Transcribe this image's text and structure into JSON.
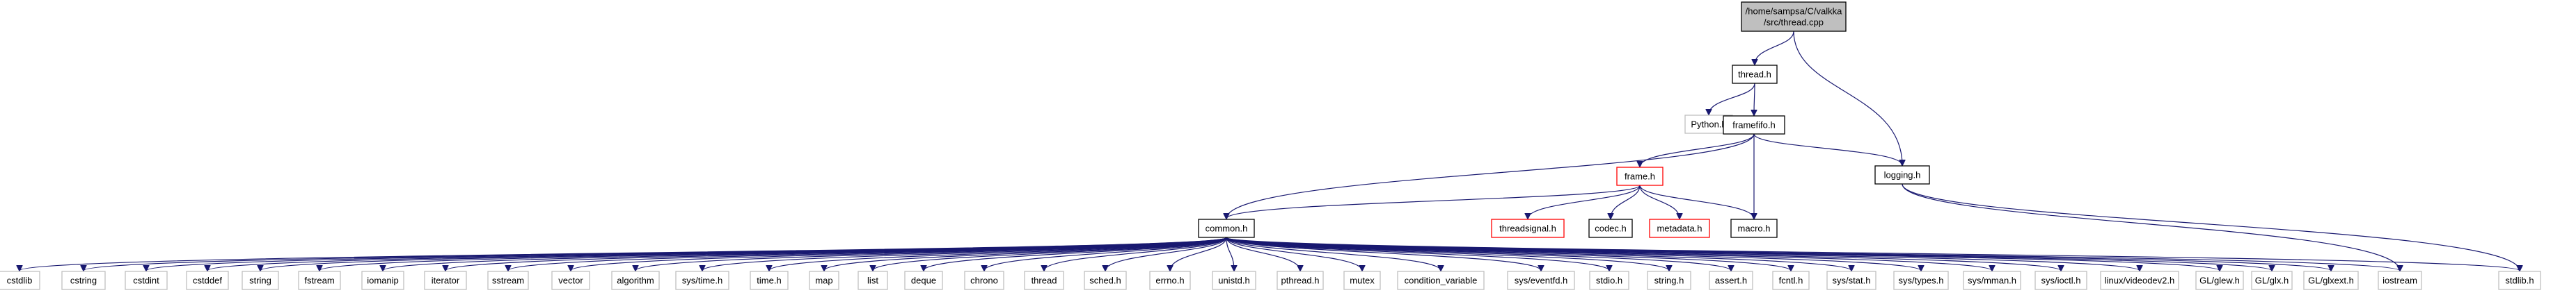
{
  "diagram": {
    "nodes": [
      {
        "id": "root",
        "lines": [
          "/home/sampsa/C/valkka",
          "/src/thread.cpp"
        ],
        "style": "root",
        "link": false
      },
      {
        "id": "thread_h",
        "lines": [
          "thread.h"
        ],
        "style": "normal",
        "link": true
      },
      {
        "id": "python_h",
        "lines": [
          "Python.h"
        ],
        "style": "missing",
        "link": false
      },
      {
        "id": "framefifo_h",
        "lines": [
          "framefifo.h"
        ],
        "style": "normal",
        "link": true
      },
      {
        "id": "logging_h",
        "lines": [
          "logging.h"
        ],
        "style": "normal",
        "link": true
      },
      {
        "id": "frame_h",
        "lines": [
          "frame.h"
        ],
        "style": "truncated",
        "link": true
      },
      {
        "id": "threadsignal_h",
        "lines": [
          "threadsignal.h"
        ],
        "style": "truncated",
        "link": true
      },
      {
        "id": "codec_h",
        "lines": [
          "codec.h"
        ],
        "style": "normal",
        "link": true
      },
      {
        "id": "metadata_h",
        "lines": [
          "metadata.h"
        ],
        "style": "truncated",
        "link": true
      },
      {
        "id": "macro_h",
        "lines": [
          "macro.h"
        ],
        "style": "normal",
        "link": true
      },
      {
        "id": "common_h",
        "lines": [
          "common.h"
        ],
        "style": "normal",
        "link": true
      },
      {
        "id": "cstdlib",
        "lines": [
          "cstdlib"
        ],
        "style": "missing",
        "link": false
      },
      {
        "id": "cstring",
        "lines": [
          "cstring"
        ],
        "style": "missing",
        "link": false
      },
      {
        "id": "cstdint",
        "lines": [
          "cstdint"
        ],
        "style": "missing",
        "link": false
      },
      {
        "id": "cstddef",
        "lines": [
          "cstddef"
        ],
        "style": "missing",
        "link": false
      },
      {
        "id": "string",
        "lines": [
          "string"
        ],
        "style": "missing",
        "link": false
      },
      {
        "id": "fstream",
        "lines": [
          "fstream"
        ],
        "style": "missing",
        "link": false
      },
      {
        "id": "iomanip",
        "lines": [
          "iomanip"
        ],
        "style": "missing",
        "link": false
      },
      {
        "id": "iterator",
        "lines": [
          "iterator"
        ],
        "style": "missing",
        "link": false
      },
      {
        "id": "sstream",
        "lines": [
          "sstream"
        ],
        "style": "missing",
        "link": false
      },
      {
        "id": "vector",
        "lines": [
          "vector"
        ],
        "style": "missing",
        "link": false
      },
      {
        "id": "algorithm",
        "lines": [
          "algorithm"
        ],
        "style": "missing",
        "link": false
      },
      {
        "id": "sys_time_h",
        "lines": [
          "sys/time.h"
        ],
        "style": "missing",
        "link": false
      },
      {
        "id": "time_h",
        "lines": [
          "time.h"
        ],
        "style": "missing",
        "link": false
      },
      {
        "id": "map",
        "lines": [
          "map"
        ],
        "style": "missing",
        "link": false
      },
      {
        "id": "list",
        "lines": [
          "list"
        ],
        "style": "missing",
        "link": false
      },
      {
        "id": "deque",
        "lines": [
          "deque"
        ],
        "style": "missing",
        "link": false
      },
      {
        "id": "chrono",
        "lines": [
          "chrono"
        ],
        "style": "missing",
        "link": false
      },
      {
        "id": "thread",
        "lines": [
          "thread"
        ],
        "style": "missing",
        "link": false
      },
      {
        "id": "sched_h",
        "lines": [
          "sched.h"
        ],
        "style": "missing",
        "link": false
      },
      {
        "id": "errno_h",
        "lines": [
          "errno.h"
        ],
        "style": "missing",
        "link": false
      },
      {
        "id": "unistd_h",
        "lines": [
          "unistd.h"
        ],
        "style": "missing",
        "link": false
      },
      {
        "id": "pthread_h",
        "lines": [
          "pthread.h"
        ],
        "style": "missing",
        "link": false
      },
      {
        "id": "mutex",
        "lines": [
          "mutex"
        ],
        "style": "missing",
        "link": false
      },
      {
        "id": "condition_variable",
        "lines": [
          "condition_variable"
        ],
        "style": "missing",
        "link": false
      },
      {
        "id": "sys_eventfd_h",
        "lines": [
          "sys/eventfd.h"
        ],
        "style": "missing",
        "link": false
      },
      {
        "id": "stdio_h",
        "lines": [
          "stdio.h"
        ],
        "style": "missing",
        "link": false
      },
      {
        "id": "string_h",
        "lines": [
          "string.h"
        ],
        "style": "missing",
        "link": false
      },
      {
        "id": "assert_h",
        "lines": [
          "assert.h"
        ],
        "style": "missing",
        "link": false
      },
      {
        "id": "fcntl_h",
        "lines": [
          "fcntl.h"
        ],
        "style": "missing",
        "link": false
      },
      {
        "id": "sys_stat_h",
        "lines": [
          "sys/stat.h"
        ],
        "style": "missing",
        "link": false
      },
      {
        "id": "sys_types_h",
        "lines": [
          "sys/types.h"
        ],
        "style": "missing",
        "link": false
      },
      {
        "id": "sys_mman_h",
        "lines": [
          "sys/mman.h"
        ],
        "style": "missing",
        "link": false
      },
      {
        "id": "sys_ioctl_h",
        "lines": [
          "sys/ioctl.h"
        ],
        "style": "missing",
        "link": false
      },
      {
        "id": "linux_videodev2_h",
        "lines": [
          "linux/videodev2.h"
        ],
        "style": "missing",
        "link": false
      },
      {
        "id": "gl_glew_h",
        "lines": [
          "GL/glew.h"
        ],
        "style": "missing",
        "link": false
      },
      {
        "id": "gl_glx_h",
        "lines": [
          "GL/glx.h"
        ],
        "style": "missing",
        "link": false
      },
      {
        "id": "gl_glxext_h",
        "lines": [
          "GL/glxext.h"
        ],
        "style": "missing",
        "link": false
      },
      {
        "id": "iostream",
        "lines": [
          "iostream"
        ],
        "style": "missing",
        "link": false
      },
      {
        "id": "stdlib_h",
        "lines": [
          "stdlib.h"
        ],
        "style": "missing",
        "link": false
      }
    ],
    "edges": [
      [
        "root",
        "thread_h"
      ],
      [
        "root",
        "logging_h"
      ],
      [
        "thread_h",
        "python_h"
      ],
      [
        "thread_h",
        "framefifo_h"
      ],
      [
        "framefifo_h",
        "frame_h"
      ],
      [
        "framefifo_h",
        "logging_h"
      ],
      [
        "framefifo_h",
        "common_h"
      ],
      [
        "framefifo_h",
        "macro_h"
      ],
      [
        "frame_h",
        "common_h"
      ],
      [
        "frame_h",
        "threadsignal_h"
      ],
      [
        "frame_h",
        "codec_h"
      ],
      [
        "frame_h",
        "metadata_h"
      ],
      [
        "frame_h",
        "macro_h"
      ],
      [
        "logging_h",
        "iostream"
      ],
      [
        "logging_h",
        "stdlib_h"
      ],
      [
        "common_h",
        "cstdlib"
      ],
      [
        "common_h",
        "cstring"
      ],
      [
        "common_h",
        "cstdint"
      ],
      [
        "common_h",
        "cstddef"
      ],
      [
        "common_h",
        "string"
      ],
      [
        "common_h",
        "fstream"
      ],
      [
        "common_h",
        "iomanip"
      ],
      [
        "common_h",
        "iterator"
      ],
      [
        "common_h",
        "sstream"
      ],
      [
        "common_h",
        "vector"
      ],
      [
        "common_h",
        "algorithm"
      ],
      [
        "common_h",
        "sys_time_h"
      ],
      [
        "common_h",
        "time_h"
      ],
      [
        "common_h",
        "map"
      ],
      [
        "common_h",
        "list"
      ],
      [
        "common_h",
        "deque"
      ],
      [
        "common_h",
        "chrono"
      ],
      [
        "common_h",
        "thread"
      ],
      [
        "common_h",
        "sched_h"
      ],
      [
        "common_h",
        "errno_h"
      ],
      [
        "common_h",
        "unistd_h"
      ],
      [
        "common_h",
        "pthread_h"
      ],
      [
        "common_h",
        "mutex"
      ],
      [
        "common_h",
        "condition_variable"
      ],
      [
        "common_h",
        "sys_eventfd_h"
      ],
      [
        "common_h",
        "stdio_h"
      ],
      [
        "common_h",
        "string_h"
      ],
      [
        "common_h",
        "assert_h"
      ],
      [
        "common_h",
        "fcntl_h"
      ],
      [
        "common_h",
        "sys_stat_h"
      ],
      [
        "common_h",
        "sys_types_h"
      ],
      [
        "common_h",
        "sys_mman_h"
      ],
      [
        "common_h",
        "sys_ioctl_h"
      ],
      [
        "common_h",
        "linux_videodev2_h"
      ],
      [
        "common_h",
        "gl_glew_h"
      ],
      [
        "common_h",
        "gl_glx_h"
      ],
      [
        "common_h",
        "gl_glxext_h"
      ],
      [
        "common_h",
        "iostream"
      ],
      [
        "common_h",
        "stdlib_h"
      ]
    ]
  },
  "colors": {
    "edge": "#191970",
    "root_fill": "#bfbfbf",
    "normal_border": "#000000",
    "missing_border": "#bfbfbf",
    "truncated_border": "#ff0000",
    "node_fill": "#ffffff",
    "text": "#000000"
  }
}
